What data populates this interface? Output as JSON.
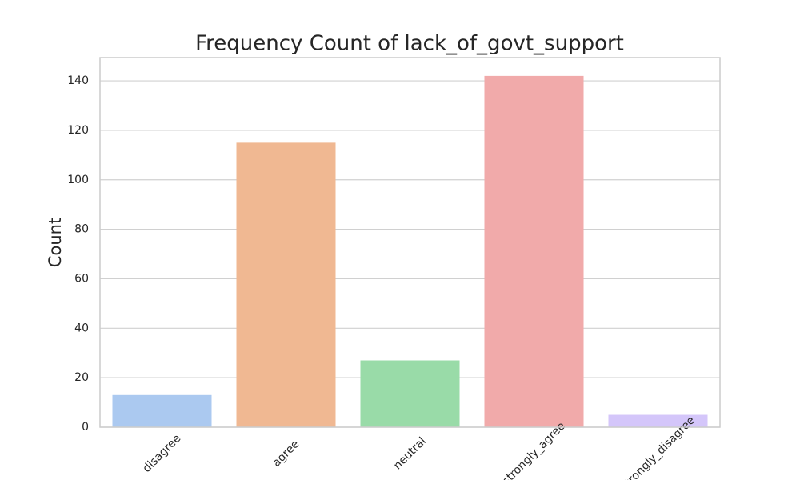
{
  "chart_data": {
    "type": "bar",
    "title": "Frequency Count of lack_of_govt_support",
    "y_label": "Count",
    "categories": [
      "disagree",
      "agree",
      "neutral",
      "strongly_agree",
      "strongly_disagree"
    ],
    "values": [
      13,
      115,
      27,
      142,
      5
    ],
    "colors": [
      "#abc9f0",
      "#f0b892",
      "#99dba8",
      "#f1aaaa",
      "#d4c6fa"
    ],
    "ylim": [
      0,
      149.4
    ],
    "yticks": [
      0,
      20,
      40,
      60,
      80,
      100,
      120,
      140
    ],
    "grid": true
  }
}
